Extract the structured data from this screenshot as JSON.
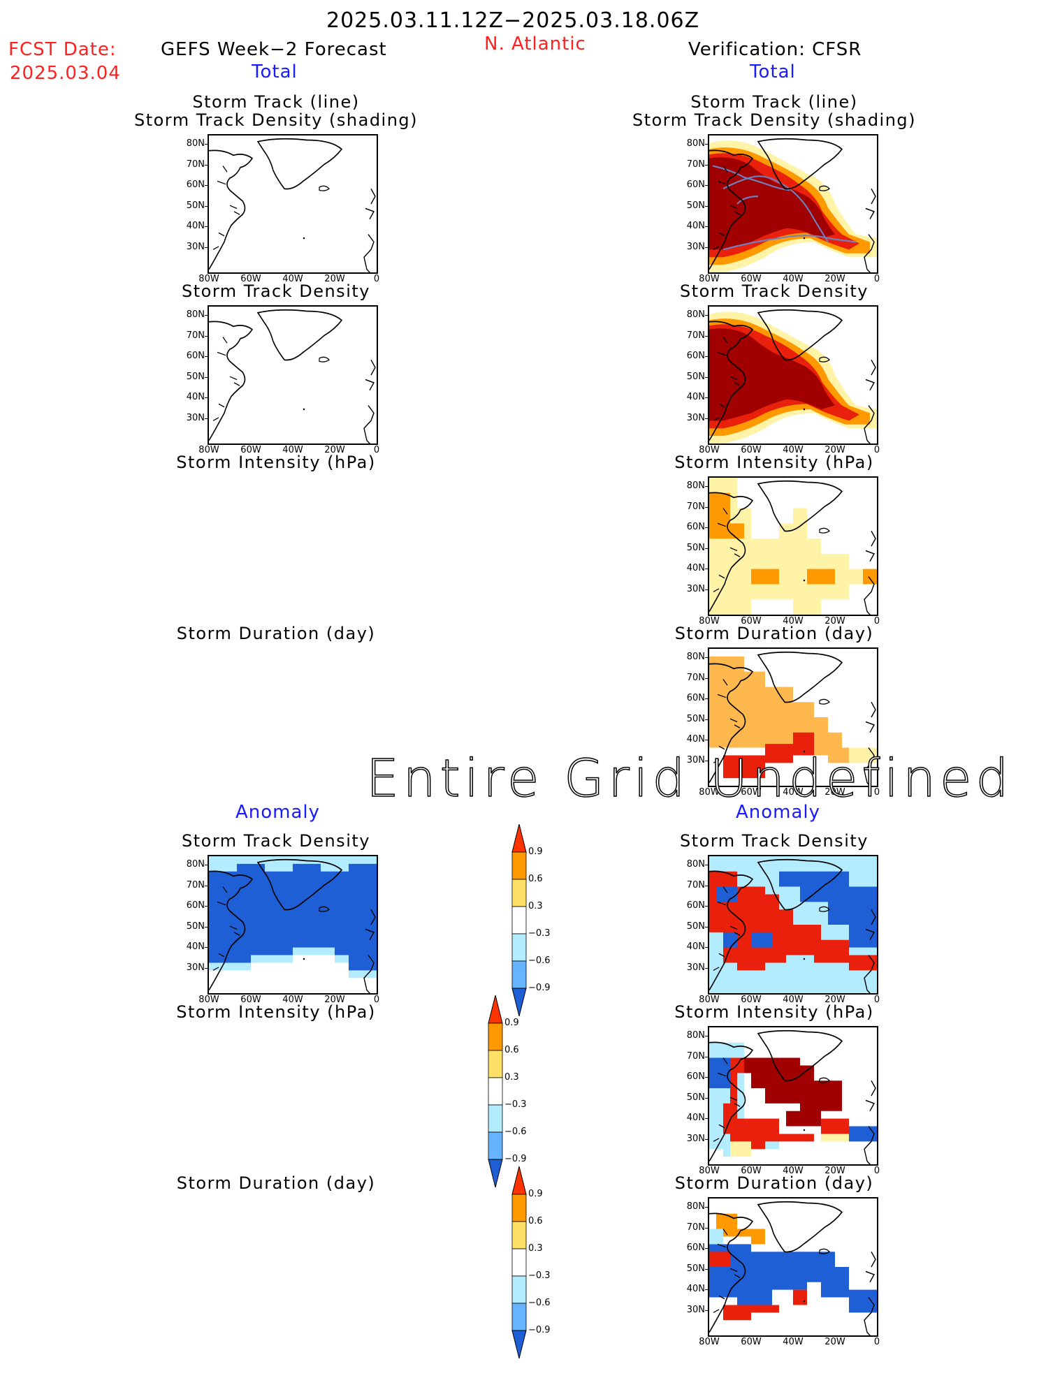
{
  "header": {
    "date_range": "2025.03.11.12Z−2025.03.18.06Z",
    "fcst_label": "FCST Date:",
    "fcst_date": "2025.03.04",
    "left_title": "GEFS Week−2 Forecast",
    "region": "N. Atlantic",
    "right_title": "Verification: CFSR",
    "total_label": "Total",
    "anomaly_label": "Anomaly"
  },
  "panel_titles": {
    "track_line": "Storm Track (line)",
    "track_shading": "Storm Track Density (shading)",
    "density": "Storm Track Density",
    "intensity": "Storm Intensity (hPa)",
    "duration": "Storm Duration (day)"
  },
  "axes": {
    "lat_ticks": [
      "80N",
      "70N",
      "60N",
      "50N",
      "40N",
      "30N"
    ],
    "lon_ticks": [
      "80W",
      "60W",
      "40W",
      "20W",
      "0"
    ]
  },
  "colorbar": {
    "labels": [
      "0.9",
      "0.6",
      "0.3",
      "−0.3",
      "−0.6",
      "−0.9"
    ],
    "colors": [
      "#ff3300",
      "#ff9900",
      "#ffe066",
      "#ffffff",
      "#b3ecff",
      "#66b3ff",
      "#1f5fd6"
    ]
  },
  "overlay_message": "Entire Grid Undefined",
  "colors": {
    "dark_red": "#a00000",
    "red": "#e8200c",
    "orange": "#ff9900",
    "light_orange": "#ffb84d",
    "yellow": "#fff3a8",
    "blue": "#1f5fd6",
    "light_blue": "#b3ecff",
    "track_line": "#6f7fbf"
  }
}
